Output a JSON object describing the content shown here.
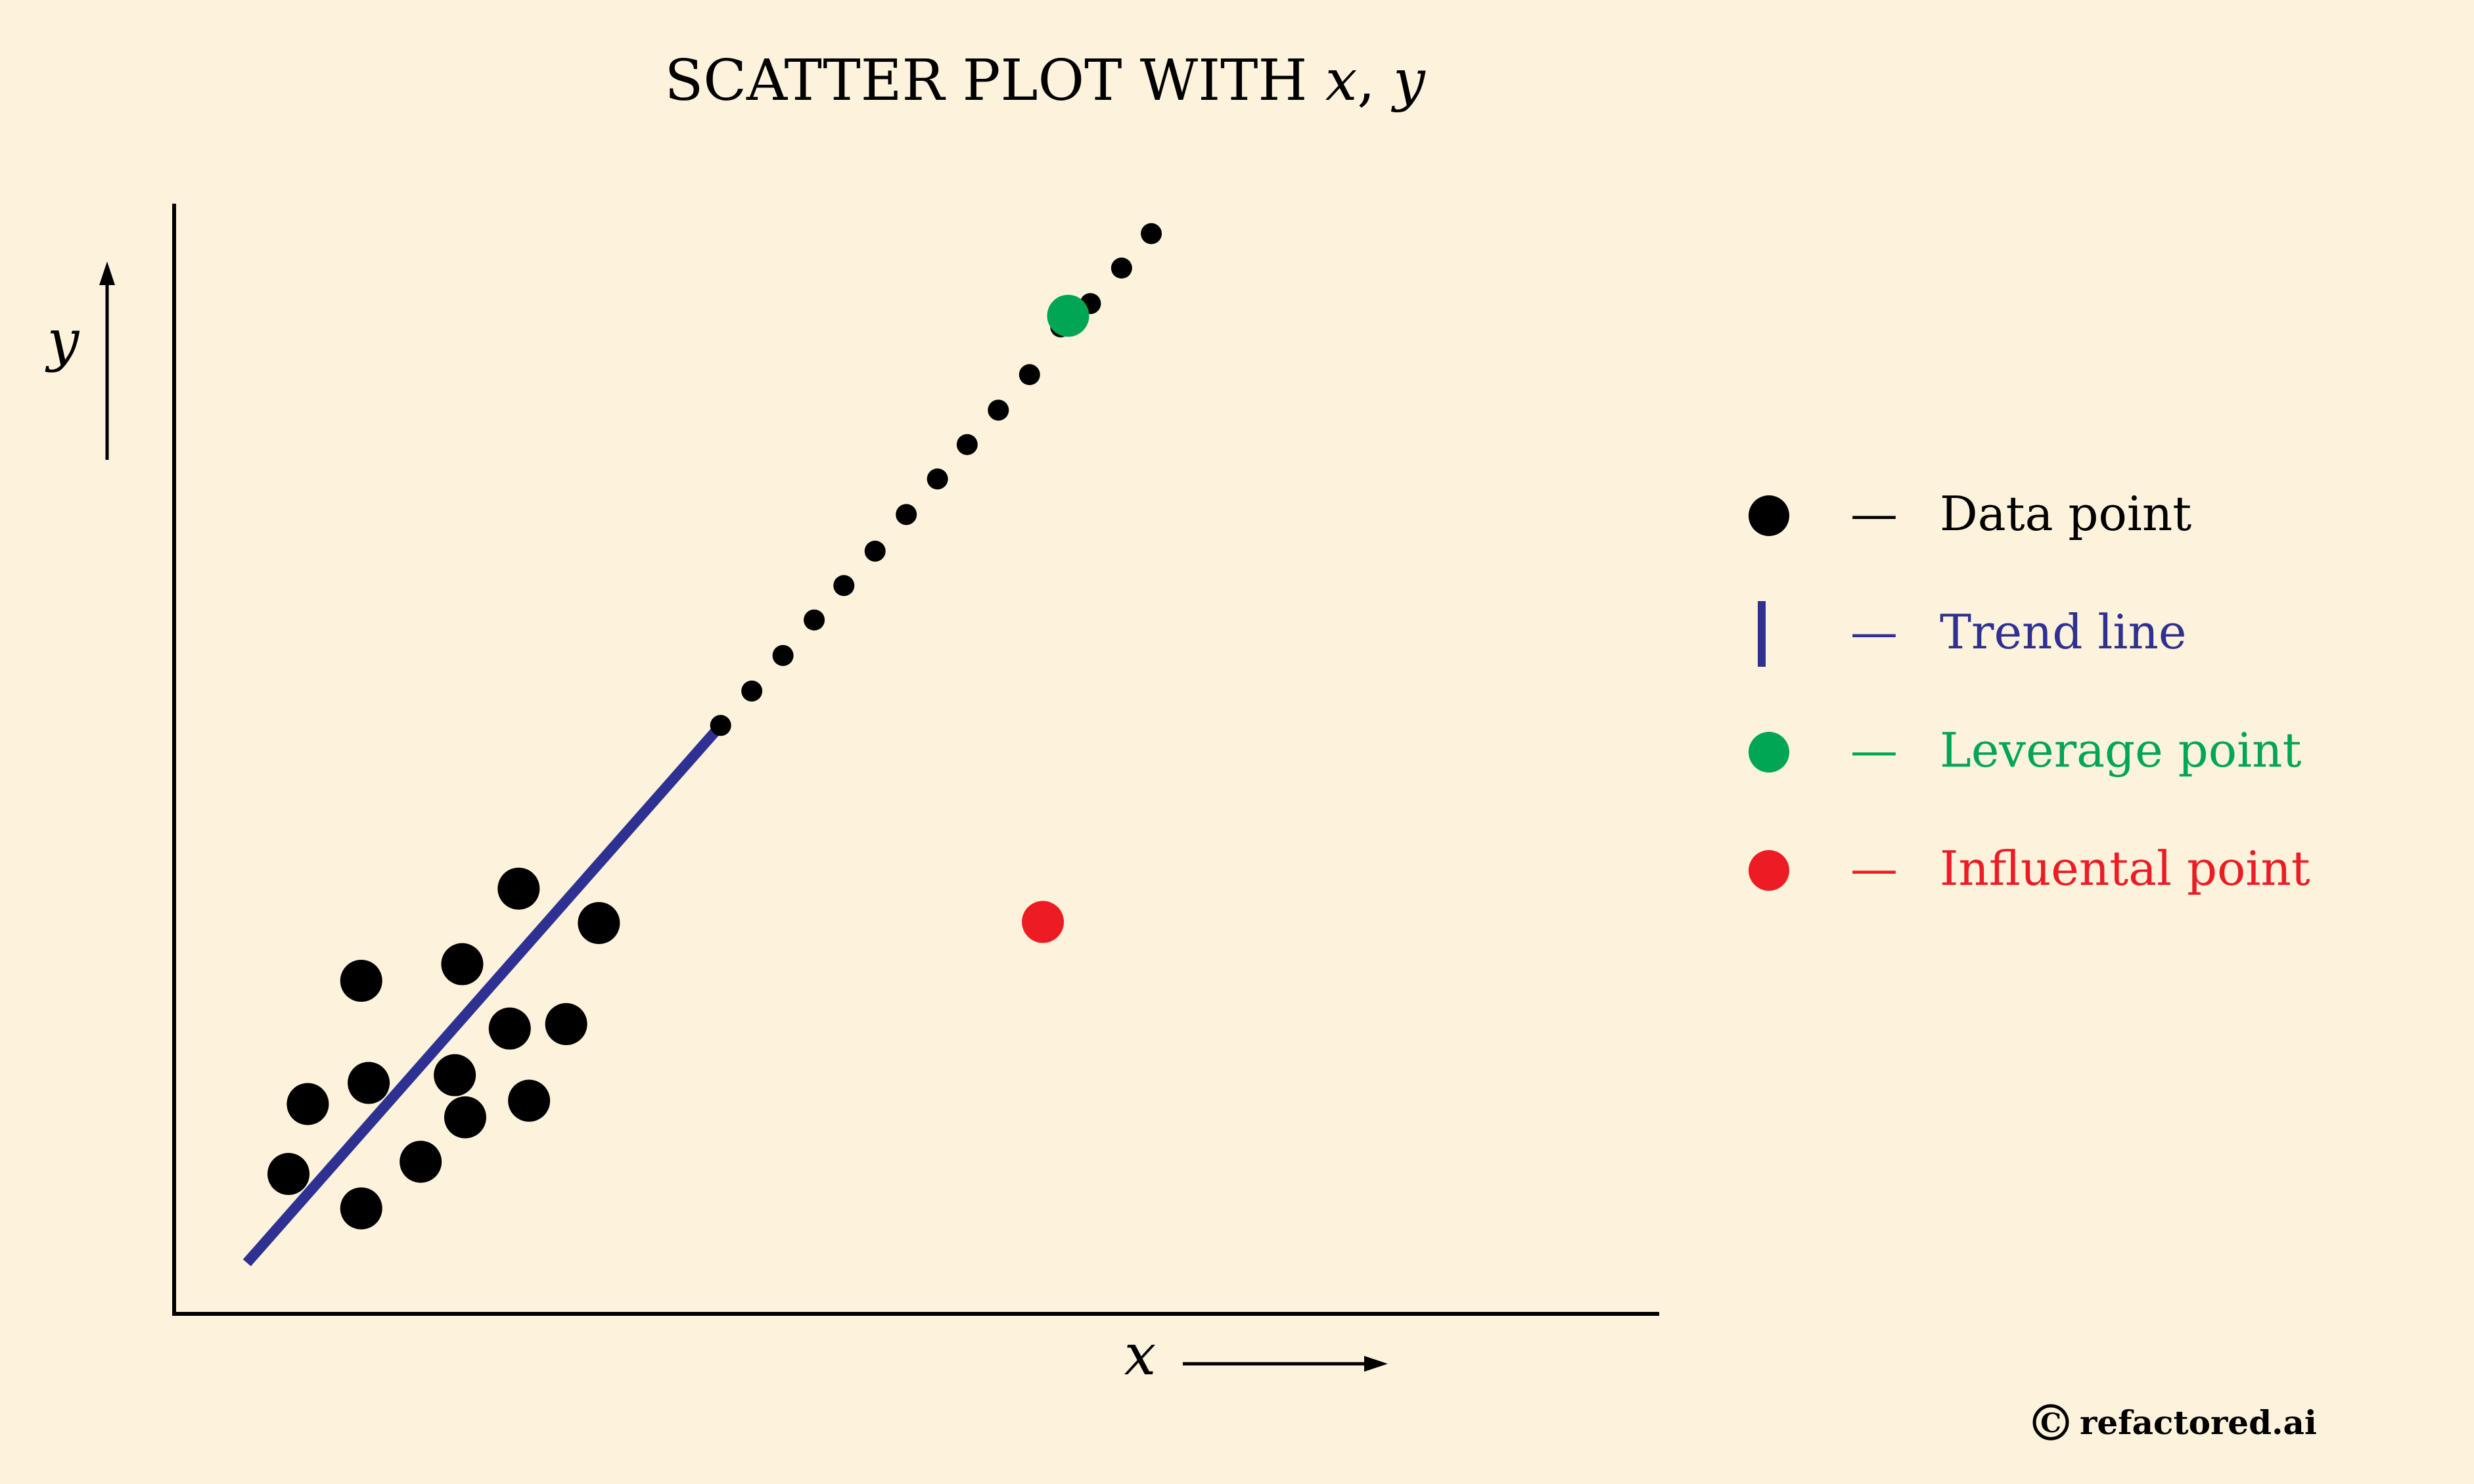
{
  "chart_data": {
    "type": "scatter",
    "title": {
      "prefix": "SCATTER PLOT WITH ",
      "x_symbol": "x",
      "separator": ", ",
      "y_symbol": "y"
    },
    "xlabel": "x",
    "ylabel": "y",
    "xlim": [
      0,
      100
    ],
    "ylim": [
      0,
      100
    ],
    "grid": false,
    "legend_position": "right",
    "series": [
      {
        "role": "data",
        "color": "#000000",
        "points": [
          {
            "x": 7.7,
            "y": 12.6
          },
          {
            "x": 9.0,
            "y": 18.9
          },
          {
            "x": 12.6,
            "y": 9.5
          },
          {
            "x": 12.6,
            "y": 30.0
          },
          {
            "x": 13.1,
            "y": 20.8
          },
          {
            "x": 16.6,
            "y": 13.7
          },
          {
            "x": 18.9,
            "y": 21.5
          },
          {
            "x": 19.6,
            "y": 17.7
          },
          {
            "x": 19.4,
            "y": 31.5
          },
          {
            "x": 22.6,
            "y": 25.7
          },
          {
            "x": 23.9,
            "y": 19.2
          },
          {
            "x": 23.2,
            "y": 38.3
          },
          {
            "x": 26.4,
            "y": 26.1
          },
          {
            "x": 28.6,
            "y": 35.2
          }
        ],
        "size": "large"
      },
      {
        "role": "data",
        "color": "#000000",
        "points": [
          {
            "x": 36.8,
            "y": 53.0
          },
          {
            "x": 38.9,
            "y": 56.1
          },
          {
            "x": 41.0,
            "y": 59.3
          },
          {
            "x": 43.1,
            "y": 62.5
          },
          {
            "x": 45.1,
            "y": 65.6
          },
          {
            "x": 47.2,
            "y": 68.7
          },
          {
            "x": 49.3,
            "y": 72.0
          },
          {
            "x": 51.4,
            "y": 75.2
          },
          {
            "x": 53.4,
            "y": 78.3
          },
          {
            "x": 55.5,
            "y": 81.4
          },
          {
            "x": 57.6,
            "y": 84.6
          },
          {
            "x": 59.7,
            "y": 88.9
          },
          {
            "x": 61.7,
            "y": 91.0
          },
          {
            "x": 63.8,
            "y": 94.2
          },
          {
            "x": 65.8,
            "y": 97.3
          }
        ],
        "size": "small"
      },
      {
        "role": "leverage",
        "color": "#00a651",
        "points": [
          {
            "x": 60.2,
            "y": 89.9
          }
        ],
        "size": "large"
      },
      {
        "role": "influential",
        "color": "#ed1c24",
        "points": [
          {
            "x": 58.5,
            "y": 35.3
          }
        ],
        "size": "large"
      }
    ],
    "trend_line": {
      "color": "#2e3192",
      "from": {
        "x": 4.9,
        "y": 4.6
      },
      "to": {
        "x": 36.8,
        "y": 53.0
      }
    },
    "legend": [
      {
        "marker": "dot",
        "label": "Data point",
        "color": "#000000"
      },
      {
        "marker": "bar",
        "label": "Trend line",
        "color": "#2e3192"
      },
      {
        "marker": "dot",
        "label": "Leverage point",
        "color": "#00a651"
      },
      {
        "marker": "dot",
        "label": "Influental point",
        "color": "#ed1c24"
      }
    ],
    "dash": "—"
  },
  "credit": {
    "symbol": "C",
    "text": "refactored.ai"
  }
}
